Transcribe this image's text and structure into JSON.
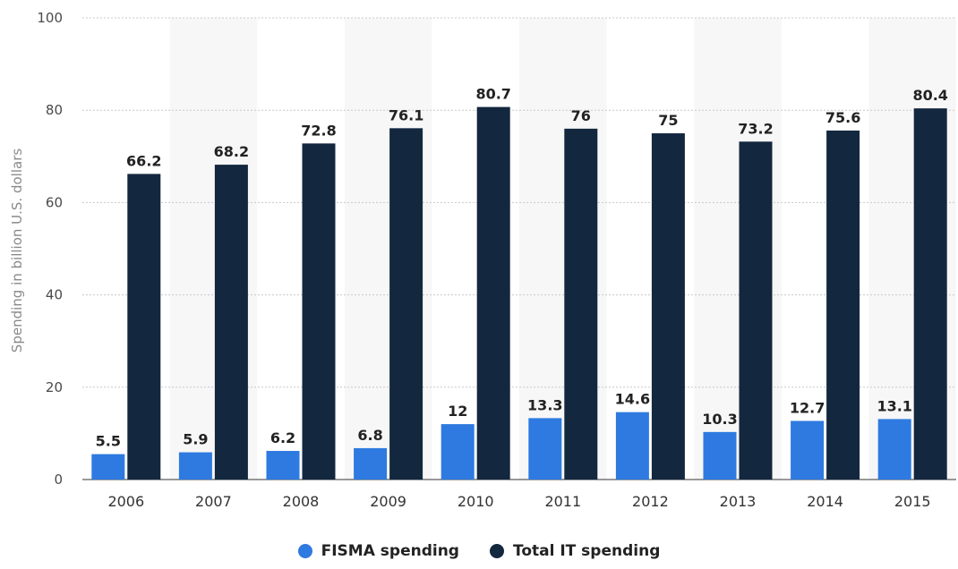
{
  "chart_data": {
    "type": "bar",
    "ylabel": "Spending in billion U.S. dollars",
    "ylim": [
      0,
      100
    ],
    "yticks": [
      0,
      20,
      40,
      60,
      80,
      100
    ],
    "categories": [
      "2006",
      "2007",
      "2008",
      "2009",
      "2010",
      "2011",
      "2012",
      "2013",
      "2014",
      "2015"
    ],
    "series": [
      {
        "name": "FISMA spending",
        "color": "#2e7ae0",
        "values": [
          5.5,
          5.9,
          6.2,
          6.8,
          12,
          13.3,
          14.6,
          10.3,
          12.7,
          13.1
        ]
      },
      {
        "name": "Total IT spending",
        "color": "#13273f",
        "values": [
          66.2,
          68.2,
          72.8,
          76.1,
          80.7,
          76,
          75,
          73.2,
          75.6,
          80.4
        ]
      }
    ],
    "grid": true,
    "legend_position": "bottom"
  }
}
